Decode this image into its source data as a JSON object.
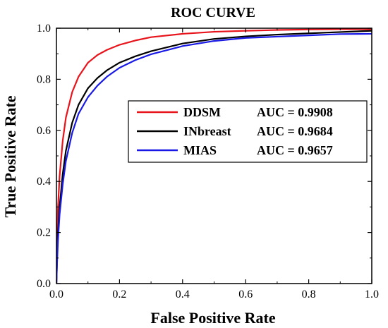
{
  "chart_data": {
    "type": "line",
    "title": "ROC CURVE",
    "xlabel": "False Positive Rate",
    "ylabel": "True Positive Rate",
    "xlim": [
      0.0,
      1.0
    ],
    "ylim": [
      0.0,
      1.0
    ],
    "xticks": [
      "0.0",
      "0.2",
      "0.4",
      "0.6",
      "0.8",
      "1.0"
    ],
    "yticks": [
      "0.0",
      "0.2",
      "0.4",
      "0.6",
      "0.8",
      "1.0"
    ],
    "grid": false,
    "legend_position": "center-right",
    "series": [
      {
        "name": "DDSM",
        "auc_label": "AUC = 0.9908",
        "color": "#e8141c",
        "x": [
          0.0,
          0.002,
          0.005,
          0.01,
          0.02,
          0.03,
          0.05,
          0.07,
          0.1,
          0.13,
          0.16,
          0.2,
          0.25,
          0.3,
          0.4,
          0.5,
          0.6,
          0.7,
          0.8,
          0.9,
          1.0
        ],
        "y": [
          0.0,
          0.17,
          0.3,
          0.42,
          0.56,
          0.65,
          0.75,
          0.81,
          0.865,
          0.895,
          0.915,
          0.935,
          0.952,
          0.965,
          0.978,
          0.986,
          0.99,
          0.993,
          0.995,
          0.996,
          0.996
        ]
      },
      {
        "name": "INbreast",
        "auc_label": "AUC = 0.9684",
        "color": "#000000",
        "x": [
          0.0,
          0.002,
          0.005,
          0.01,
          0.02,
          0.03,
          0.05,
          0.07,
          0.1,
          0.13,
          0.16,
          0.2,
          0.25,
          0.3,
          0.4,
          0.5,
          0.6,
          0.7,
          0.8,
          0.9,
          1.0
        ],
        "y": [
          0.0,
          0.1,
          0.2,
          0.3,
          0.43,
          0.52,
          0.63,
          0.7,
          0.765,
          0.805,
          0.835,
          0.865,
          0.89,
          0.91,
          0.94,
          0.958,
          0.968,
          0.975,
          0.98,
          0.985,
          0.99
        ]
      },
      {
        "name": "MIAS",
        "auc_label": "AUC = 0.9657",
        "color": "#1a1ae6",
        "x": [
          0.0,
          0.002,
          0.005,
          0.01,
          0.02,
          0.03,
          0.05,
          0.07,
          0.1,
          0.13,
          0.16,
          0.2,
          0.25,
          0.3,
          0.4,
          0.5,
          0.6,
          0.7,
          0.8,
          0.9,
          1.0
        ],
        "y": [
          0.0,
          0.08,
          0.17,
          0.27,
          0.39,
          0.48,
          0.59,
          0.665,
          0.73,
          0.775,
          0.81,
          0.845,
          0.875,
          0.898,
          0.93,
          0.95,
          0.962,
          0.967,
          0.972,
          0.977,
          0.978
        ]
      }
    ]
  }
}
